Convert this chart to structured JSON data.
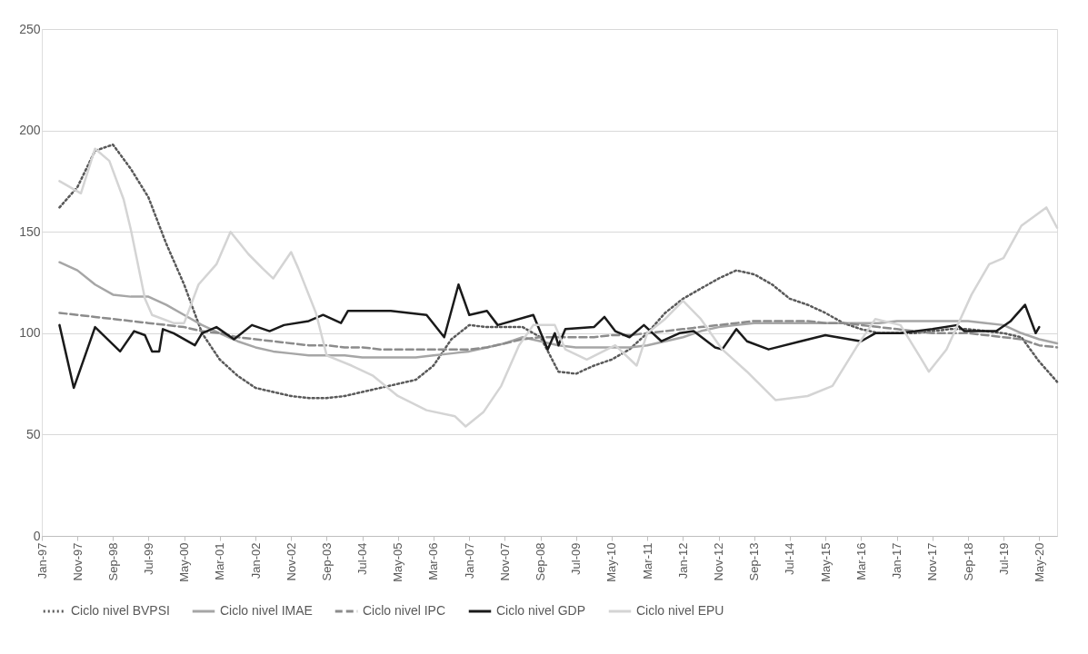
{
  "chart_data": {
    "type": "line",
    "x": [
      "1997-06",
      "1997-11",
      "1998-04",
      "1998-09",
      "1999-02",
      "1999-07",
      "1999-12",
      "2000-05",
      "2000-10",
      "2001-03",
      "2001-08",
      "2002-01",
      "2002-06",
      "2002-11",
      "2003-04",
      "2003-09",
      "2004-02",
      "2004-07",
      "2004-12",
      "2005-05",
      "2005-10",
      "2006-03",
      "2006-08",
      "2007-01",
      "2007-06",
      "2007-11",
      "2008-04",
      "2008-09",
      "2009-02",
      "2009-07",
      "2009-12",
      "2010-05",
      "2010-10",
      "2011-03",
      "2011-08",
      "2012-01",
      "2012-06",
      "2012-11",
      "2013-04",
      "2013-09",
      "2014-02",
      "2014-07",
      "2014-12",
      "2015-05",
      "2015-10",
      "2016-03",
      "2016-08",
      "2017-01",
      "2017-06",
      "2017-11",
      "2018-04",
      "2018-09",
      "2019-02",
      "2019-07",
      "2019-12",
      "2020-05",
      "2020-10"
    ],
    "series": [
      {
        "name": "Ciclo nivel BVPSI",
        "color": "#595959",
        "line_style": "dotted",
        "values": [
          162,
          172,
          190,
          193,
          181,
          167,
          144,
          124,
          100,
          87,
          79,
          73,
          71,
          69,
          68,
          68,
          69,
          71,
          73,
          75,
          77,
          84,
          97,
          104,
          103,
          103,
          103,
          98,
          81,
          80,
          84,
          87,
          92,
          100,
          110,
          117,
          122,
          127,
          131,
          129,
          124,
          117,
          114,
          110,
          105,
          102,
          100,
          100,
          100,
          101,
          102,
          102,
          101,
          100,
          98,
          86,
          76
        ]
      },
      {
        "name": "Ciclo nivel IMAE",
        "color": "#a6a6a6",
        "line_style": "solid",
        "values": [
          135,
          131,
          124,
          119,
          118,
          118,
          114,
          109,
          104,
          100,
          96,
          93,
          91,
          90,
          89,
          89,
          89,
          88,
          88,
          88,
          88,
          89,
          90,
          91,
          93,
          95,
          98,
          96,
          94,
          93,
          93,
          93,
          93,
          94,
          96,
          98,
          101,
          103,
          104,
          105,
          105,
          105,
          105,
          105,
          105,
          105,
          105,
          106,
          106,
          106,
          106,
          106,
          105,
          104,
          100,
          97,
          95
        ]
      },
      {
        "name": "Ciclo nivel IPC",
        "color": "#8c8c8c",
        "line_style": "dashed",
        "values": [
          110,
          109,
          108,
          107,
          106,
          105,
          104,
          103,
          101,
          100,
          98,
          97,
          96,
          95,
          94,
          94,
          93,
          93,
          92,
          92,
          92,
          92,
          92,
          92,
          93,
          95,
          97,
          98,
          98,
          98,
          98,
          99,
          99,
          100,
          101,
          102,
          103,
          104,
          105,
          106,
          106,
          106,
          106,
          105,
          105,
          104,
          103,
          102,
          101,
          100,
          100,
          100,
          99,
          98,
          97,
          94,
          93
        ]
      },
      {
        "name": "Ciclo nivel GDP",
        "color": "#1a1a1a",
        "line_style": "solid",
        "x": [
          "1997-06",
          "1997-10",
          "1998-04",
          "1998-11",
          "1999-03",
          "1999-06",
          "1999-08",
          "1999-10",
          "1999-11",
          "2000-02",
          "2000-08",
          "2000-10",
          "2001-02",
          "2001-07",
          "2001-12",
          "2002-05",
          "2002-09",
          "2003-04",
          "2003-08",
          "2004-01",
          "2004-03",
          "2005-03",
          "2006-01",
          "2006-06",
          "2006-10",
          "2007-01",
          "2007-06",
          "2007-09",
          "2008-07",
          "2008-11",
          "2009-01",
          "2009-02",
          "2009-04",
          "2009-12",
          "2010-03",
          "2010-06",
          "2010-10",
          "2011-02",
          "2011-07",
          "2011-12",
          "2012-04",
          "2012-10",
          "2012-12",
          "2013-04",
          "2013-07",
          "2014-01",
          "2014-10",
          "2015-05",
          "2016-03",
          "2016-07",
          "2017-02",
          "2017-11",
          "2018-06",
          "2018-08",
          "2019-05",
          "2019-09",
          "2020-01",
          "2020-04",
          "2020-05"
        ],
        "values": [
          104,
          73,
          103,
          91,
          101,
          99,
          91,
          91,
          102,
          100,
          94,
          100,
          103,
          97,
          104,
          101,
          104,
          106,
          109,
          105,
          111,
          111,
          109,
          98,
          124,
          109,
          111,
          104,
          109,
          92,
          100,
          94,
          102,
          103,
          108,
          101,
          98,
          104,
          96,
          100,
          101,
          93,
          92,
          102,
          96,
          92,
          96,
          99,
          96,
          100,
          100,
          102,
          104,
          101,
          101,
          106,
          114,
          100,
          103
        ]
      },
      {
        "name": "Ciclo nivel EPU",
        "color": "#d4d4d4",
        "line_style": "solid",
        "x": [
          "1997-06",
          "1997-12",
          "1998-04",
          "1998-08",
          "1998-12",
          "1999-02",
          "1999-06",
          "1999-08",
          "2000-02",
          "2000-05",
          "2000-09",
          "2001-02",
          "2001-06",
          "2001-11",
          "2002-03",
          "2002-06",
          "2002-11",
          "2003-01",
          "2003-06",
          "2003-09",
          "2004-04",
          "2004-10",
          "2005-05",
          "2006-01",
          "2006-09",
          "2006-12",
          "2007-05",
          "2007-10",
          "2008-03",
          "2008-07",
          "2009-01",
          "2009-04",
          "2009-10",
          "2010-06",
          "2010-12",
          "2011-03",
          "2011-08",
          "2012-01",
          "2012-06",
          "2012-12",
          "2013-07",
          "2014-03",
          "2014-12",
          "2015-07",
          "2016-02",
          "2016-07",
          "2017-02",
          "2017-08",
          "2017-10",
          "2018-03",
          "2018-10",
          "2019-03",
          "2019-07",
          "2019-12",
          "2020-07",
          "2020-10"
        ],
        "values": [
          175,
          169,
          191,
          185,
          166,
          151,
          117,
          109,
          105,
          105,
          124,
          134,
          150,
          139,
          132,
          127,
          140,
          132,
          110,
          89,
          84,
          79,
          69,
          62,
          59,
          54,
          61,
          74,
          94,
          104,
          104,
          92,
          87,
          94,
          84,
          100,
          107,
          116,
          107,
          92,
          81,
          67,
          69,
          74,
          94,
          107,
          104,
          87,
          81,
          92,
          119,
          134,
          137,
          153,
          162,
          152
        ]
      }
    ],
    "xlim": [
      "1997-01",
      "2020-10"
    ],
    "xticks": [
      {
        "value": "1997-01",
        "label": "Jan-97"
      },
      {
        "value": "1997-11",
        "label": "Nov-97"
      },
      {
        "value": "1998-09",
        "label": "Sep-98"
      },
      {
        "value": "1999-07",
        "label": "Jul-99"
      },
      {
        "value": "2000-05",
        "label": "May-00"
      },
      {
        "value": "2001-03",
        "label": "Mar-01"
      },
      {
        "value": "2002-01",
        "label": "Jan-02"
      },
      {
        "value": "2002-11",
        "label": "Nov-02"
      },
      {
        "value": "2003-09",
        "label": "Sep-03"
      },
      {
        "value": "2004-07",
        "label": "Jul-04"
      },
      {
        "value": "2005-05",
        "label": "May-05"
      },
      {
        "value": "2006-03",
        "label": "Mar-06"
      },
      {
        "value": "2007-01",
        "label": "Jan-07"
      },
      {
        "value": "2007-11",
        "label": "Nov-07"
      },
      {
        "value": "2008-09",
        "label": "Sep-08"
      },
      {
        "value": "2009-07",
        "label": "Jul-09"
      },
      {
        "value": "2010-05",
        "label": "May-10"
      },
      {
        "value": "2011-03",
        "label": "Mar-11"
      },
      {
        "value": "2012-01",
        "label": "Jan-12"
      },
      {
        "value": "2012-11",
        "label": "Nov-12"
      },
      {
        "value": "2013-09",
        "label": "Sep-13"
      },
      {
        "value": "2014-07",
        "label": "Jul-14"
      },
      {
        "value": "2015-05",
        "label": "May-15"
      },
      {
        "value": "2016-03",
        "label": "Mar-16"
      },
      {
        "value": "2017-01",
        "label": "Jan-17"
      },
      {
        "value": "2017-11",
        "label": "Nov-17"
      },
      {
        "value": "2018-09",
        "label": "Sep-18"
      },
      {
        "value": "2019-07",
        "label": "Jul-19"
      },
      {
        "value": "2020-05",
        "label": "May-20"
      }
    ],
    "ylim": [
      0,
      250
    ],
    "yticks": [
      0,
      50,
      100,
      150,
      200,
      250
    ],
    "grid": "y",
    "legend": "bottom"
  }
}
